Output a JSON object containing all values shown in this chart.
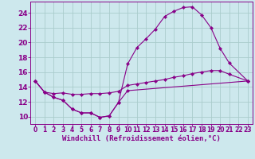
{
  "background_color": "#cde8ed",
  "grid_color": "#aacccc",
  "line_color": "#880088",
  "xlabel": "Windchill (Refroidissement éolien,°C)",
  "xlabel_fontsize": 6.5,
  "xtick_fontsize": 5.5,
  "ytick_fontsize": 6.5,
  "xlim": [
    -0.5,
    23.5
  ],
  "ylim": [
    9.0,
    25.5
  ],
  "yticks": [
    10,
    12,
    14,
    16,
    18,
    20,
    22,
    24
  ],
  "xticks": [
    0,
    1,
    2,
    3,
    4,
    5,
    6,
    7,
    8,
    9,
    10,
    11,
    12,
    13,
    14,
    15,
    16,
    17,
    18,
    19,
    20,
    21,
    22,
    23
  ],
  "line1_x": [
    0,
    1,
    2,
    3,
    4,
    5,
    6,
    7,
    8,
    9,
    10,
    23
  ],
  "line1_y": [
    14.8,
    13.3,
    12.6,
    12.2,
    11.0,
    10.5,
    10.5,
    9.9,
    10.1,
    11.9,
    13.5,
    14.8
  ],
  "line2_x": [
    0,
    1,
    2,
    3,
    4,
    5,
    6,
    7,
    8,
    9,
    10,
    11,
    12,
    13,
    14,
    15,
    16,
    17,
    18,
    19,
    20,
    21,
    23
  ],
  "line2_y": [
    14.8,
    13.3,
    12.6,
    12.2,
    11.0,
    10.5,
    10.5,
    9.9,
    10.1,
    11.9,
    17.1,
    19.3,
    20.5,
    21.8,
    23.5,
    24.2,
    24.7,
    24.8,
    23.7,
    22.0,
    19.2,
    17.2,
    14.8
  ],
  "line3_x": [
    0,
    1,
    2,
    3,
    4,
    5,
    6,
    7,
    8,
    9,
    10,
    11,
    12,
    13,
    14,
    15,
    16,
    17,
    18,
    19,
    20,
    21,
    23
  ],
  "line3_y": [
    14.8,
    13.3,
    13.1,
    13.2,
    13.0,
    13.0,
    13.1,
    13.1,
    13.2,
    13.4,
    14.2,
    14.4,
    14.6,
    14.8,
    15.0,
    15.3,
    15.5,
    15.8,
    16.0,
    16.2,
    16.2,
    15.7,
    14.8
  ]
}
